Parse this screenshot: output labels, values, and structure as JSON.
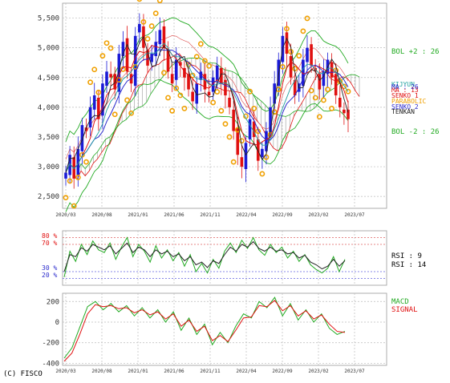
{
  "chart_data": [
    {
      "panel": "price",
      "type": "candlestick",
      "yticks": [
        "5,500",
        "5,000",
        "4,500",
        "4,000",
        "3,500",
        "3,000",
        "2,500"
      ],
      "ylim": [
        2300,
        5750
      ],
      "xticks": [
        "2020/03",
        "2020/08",
        "2021/01",
        "2021/06",
        "2021/11",
        "2022/04",
        "2022/09",
        "2023/02",
        "2023/07"
      ],
      "bollinger": {
        "plus2": {
          "label": "BOL +2 : 26",
          "color": "#22aa22"
        },
        "minus2": {
          "label": "BOL -2 : 26",
          "color": "#22aa22"
        }
      },
      "overlay_labels": [
        "KIJYUN",
        "MA : 13",
        "SENKO 1",
        "PARABOLIC",
        "SENKO 2",
        "MA : 26",
        "TENKAN"
      ],
      "series": [
        {
          "name": "close",
          "values": [
            2900,
            3200,
            2800,
            3300,
            3700,
            3600,
            4000,
            4200,
            3800,
            4400,
            4600,
            4500,
            4300,
            4900,
            5100,
            4600,
            4400,
            5200,
            5400,
            5000,
            4700,
            4900,
            5100,
            5300,
            5000,
            4600,
            4400,
            4800,
            4700,
            4500,
            4300,
            4100,
            4400,
            4600,
            4300,
            4200,
            4500,
            4700,
            4400,
            4200,
            4000,
            3600,
            3200,
            3000,
            3400,
            3800,
            3500,
            3100,
            3300,
            3600,
            4000,
            4400,
            4800,
            5200,
            4900,
            4500,
            4200,
            4400,
            4800,
            5000,
            4700,
            4600,
            4300,
            4600,
            4800,
            4500,
            4200,
            4000,
            3900,
            3800
          ]
        }
      ]
    },
    {
      "panel": "rsi",
      "type": "line",
      "yticks_top": [
        "80 %",
        "70 %"
      ],
      "yticks_bottom": [
        "30 %",
        "20 %"
      ],
      "legend": [
        "RSI : 9",
        "RSI : 14"
      ],
      "series": [
        {
          "name": "RSI : 9",
          "values": [
            22,
            60,
            45,
            70,
            55,
            75,
            62,
            58,
            72,
            48,
            66,
            80,
            52,
            70,
            60,
            44,
            68,
            50,
            62,
            46,
            58,
            38,
            55,
            30,
            42,
            28,
            48,
            35,
            60,
            72,
            58,
            76,
            64,
            80,
            62,
            54,
            70,
            58,
            66,
            50,
            60,
            45,
            55,
            40,
            33,
            28,
            35,
            52,
            30,
            48
          ]
        },
        {
          "name": "RSI : 14",
          "values": [
            30,
            55,
            52,
            65,
            60,
            70,
            66,
            62,
            68,
            56,
            64,
            72,
            58,
            66,
            62,
            52,
            62,
            56,
            60,
            52,
            56,
            46,
            52,
            40,
            44,
            36,
            46,
            42,
            55,
            66,
            60,
            70,
            66,
            74,
            64,
            60,
            66,
            60,
            62,
            56,
            58,
            50,
            54,
            44,
            40,
            34,
            38,
            48,
            38,
            46
          ]
        }
      ]
    },
    {
      "panel": "macd",
      "type": "line",
      "yticks": [
        "200",
        "0",
        "-200",
        "-400"
      ],
      "ylim": [
        -420,
        280
      ],
      "legend": [
        "MACD",
        "SIGNAL"
      ],
      "series": [
        {
          "name": "MACD",
          "values": [
            -350,
            -250,
            -50,
            150,
            200,
            120,
            180,
            100,
            160,
            60,
            140,
            40,
            120,
            0,
            100,
            -80,
            40,
            -120,
            -20,
            -220,
            -100,
            -200,
            -40,
            80,
            40,
            200,
            140,
            240,
            60,
            180,
            20,
            120,
            0,
            80,
            -60,
            -120,
            -90
          ]
        },
        {
          "name": "SIGNAL",
          "values": [
            -380,
            -300,
            -120,
            80,
            170,
            150,
            160,
            130,
            140,
            90,
            120,
            70,
            100,
            30,
            80,
            -40,
            20,
            -90,
            -40,
            -180,
            -130,
            -190,
            -80,
            40,
            50,
            160,
            150,
            210,
            110,
            160,
            60,
            110,
            30,
            70,
            -20,
            -90,
            -100
          ]
        }
      ]
    }
  ],
  "colors": {
    "candle_up": "#1a1ad6",
    "candle_down": "#e01010",
    "parabolic": "#f0a000",
    "bollinger": "#22aa22",
    "ma13": "#e01010",
    "ma26": "#2a2acc",
    "kijun": "#20a0a0",
    "tenkan": "#222222",
    "rsi9": "#22aa22",
    "rsi14": "#222222",
    "macd": "#22aa22",
    "signal": "#e01010"
  },
  "copyright": "(C) FISCO"
}
